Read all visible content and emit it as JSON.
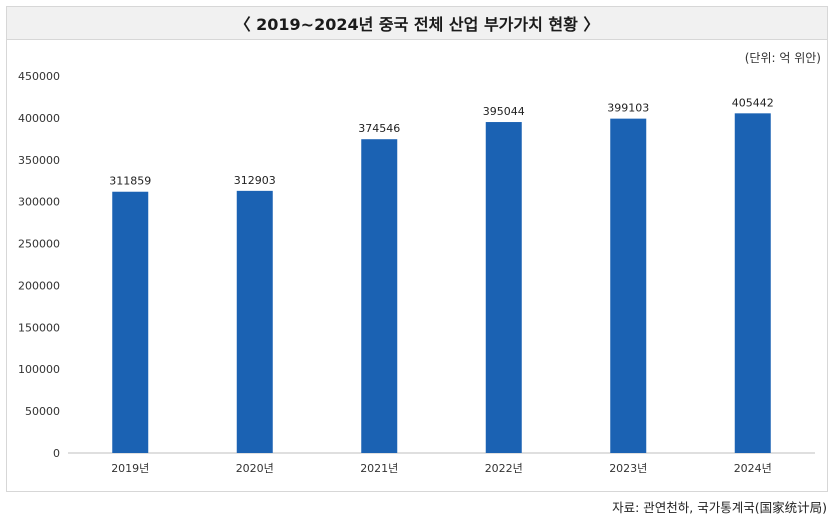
{
  "header": {
    "title": "〈 2019~2024년 중국 전체 산업 부가가치 현황 〉"
  },
  "unit": "(단위: 억 위안)",
  "source": "자료: 관연천하, 국가통계국(国家统计局)",
  "chart_data": {
    "type": "bar",
    "title": "〈 2019~2024년 중국 전체 산업 부가가치 현황 〉",
    "categories": [
      "2019년",
      "2020년",
      "2021년",
      "2022년",
      "2023년",
      "2024년"
    ],
    "values": [
      311859,
      312903,
      374546,
      395044,
      399103,
      405442
    ],
    "value_labels": [
      "311859",
      "312903",
      "374546",
      "395044",
      "399103",
      "405442"
    ],
    "ylim": [
      0,
      450000
    ],
    "yticks": [
      "0",
      "50000",
      "100000",
      "150000",
      "200000",
      "250000",
      "300000",
      "350000",
      "400000",
      "450000"
    ],
    "xlabel": "",
    "ylabel": "",
    "grid": false,
    "bar_color": "#1b62b3"
  }
}
